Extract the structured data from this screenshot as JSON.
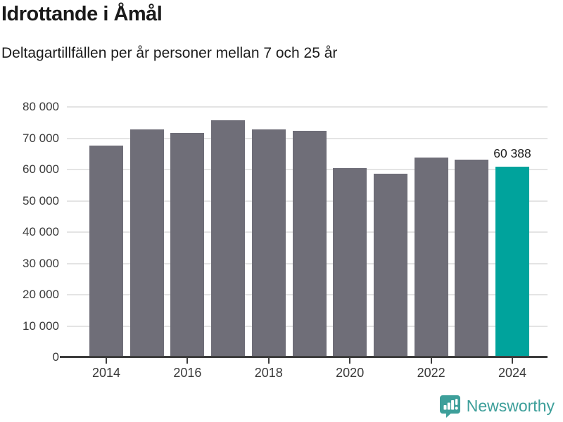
{
  "header": {
    "title": "Idrottande i Åmål",
    "subtitle": "Deltagartillfällen per år personer mellan 7 och 25 år"
  },
  "chart_data": {
    "type": "bar",
    "title": "Idrottande i Åmål",
    "subtitle": "Deltagartillfällen per år personer mellan 7 och 25 år",
    "categories": [
      2014,
      2015,
      2016,
      2017,
      2018,
      2019,
      2020,
      2021,
      2022,
      2023,
      2024
    ],
    "values": [
      67100,
      72400,
      71300,
      75300,
      72400,
      71900,
      60100,
      58100,
      63400,
      62800,
      60388
    ],
    "highlight_index": 10,
    "annotation": {
      "index": 10,
      "label": "60 388"
    },
    "xlabel": "",
    "ylabel": "",
    "ylim": [
      0,
      80000
    ],
    "ytick_step": 10000,
    "ytick_labels": [
      "0",
      "10 000",
      "20 000",
      "30 000",
      "40 000",
      "50 000",
      "60 000",
      "70 000",
      "80 000"
    ],
    "xtick_labels": [
      "2014",
      "2016",
      "2018",
      "2020",
      "2022",
      "2024"
    ],
    "grid": true,
    "legend": false,
    "bar_color": "#6f6e78",
    "highlight_color": "#00a39c"
  },
  "footer": {
    "brand": "Newsworthy",
    "brand_color": "#3d9f9a",
    "logo_icon": "newsworthy-bubble-chart-icon"
  }
}
